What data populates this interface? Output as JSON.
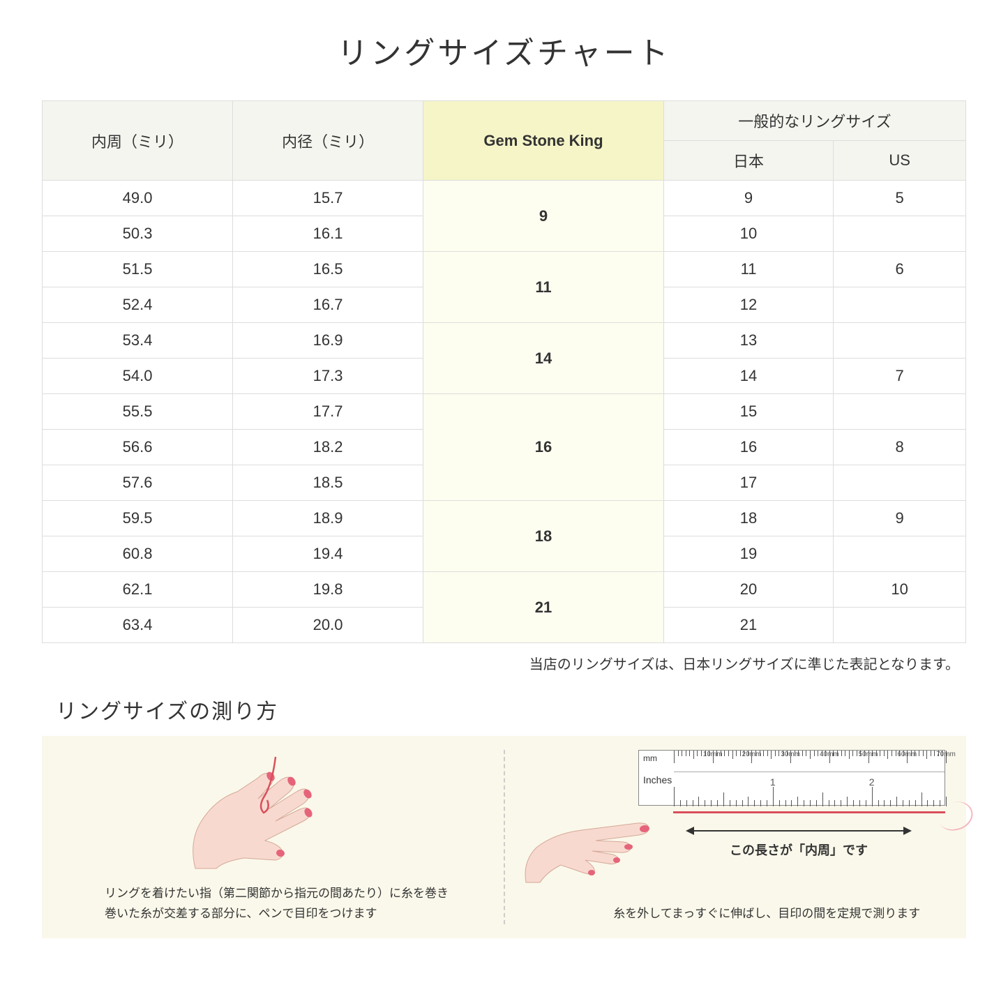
{
  "title": "リングサイズチャート",
  "headers": {
    "circumference": "内周（ミリ）",
    "diameter": "内径（ミリ）",
    "gsk": "Gem Stone King",
    "general": "一般的なリングサイズ",
    "japan": "日本",
    "us": "US"
  },
  "groups": [
    {
      "gsk": "9",
      "rows": [
        {
          "c": "49.0",
          "d": "15.7",
          "jp": "9",
          "us": "5"
        },
        {
          "c": "50.3",
          "d": "16.1",
          "jp": "10",
          "us": ""
        }
      ]
    },
    {
      "gsk": "11",
      "rows": [
        {
          "c": "51.5",
          "d": "16.5",
          "jp": "11",
          "us": "6"
        },
        {
          "c": "52.4",
          "d": "16.7",
          "jp": "12",
          "us": ""
        }
      ]
    },
    {
      "gsk": "14",
      "rows": [
        {
          "c": "53.4",
          "d": "16.9",
          "jp": "13",
          "us": ""
        },
        {
          "c": "54.0",
          "d": "17.3",
          "jp": "14",
          "us": "7"
        }
      ]
    },
    {
      "gsk": "16",
      "rows": [
        {
          "c": "55.5",
          "d": "17.7",
          "jp": "15",
          "us": ""
        },
        {
          "c": "56.6",
          "d": "18.2",
          "jp": "16",
          "us": "8"
        },
        {
          "c": "57.6",
          "d": "18.5",
          "jp": "17",
          "us": ""
        }
      ]
    },
    {
      "gsk": "18",
      "rows": [
        {
          "c": "59.5",
          "d": "18.9",
          "jp": "18",
          "us": "9"
        },
        {
          "c": "60.8",
          "d": "19.4",
          "jp": "19",
          "us": ""
        }
      ]
    },
    {
      "gsk": "21",
      "rows": [
        {
          "c": "62.1",
          "d": "19.8",
          "jp": "20",
          "us": "10"
        },
        {
          "c": "63.4",
          "d": "20.0",
          "jp": "21",
          "us": ""
        }
      ]
    }
  ],
  "note": "当店のリングサイズは、日本リングサイズに準じた表記となります。",
  "subtitle": "リングサイズの測り方",
  "instruction_left": "リングを着けたい指（第二関節から指元の間あたり）に糸を巻き\n巻いた糸が交差する部分に、ペンで目印をつけます",
  "instruction_right": "糸を外してまっすぐに伸ばし、目印の間を定規で測ります",
  "arrow_label": "この長さが「内周」です",
  "ruler": {
    "mm_label": "mm",
    "in_label": "Inches",
    "mm_marks": [
      "10mm",
      "20mm",
      "30mm",
      "40mm",
      "50mm",
      "60mm",
      "70mm"
    ],
    "in_marks": [
      "1",
      "2"
    ]
  },
  "colors": {
    "header_bg": "#f5f5f0",
    "gsk_bg": "#f5f5c8",
    "gsk_cell_bg": "#fdfdf0",
    "panel_bg": "#faf8ea",
    "skin": "#f8d9cf",
    "nail": "#e5647a",
    "thread": "#d94f5c"
  }
}
